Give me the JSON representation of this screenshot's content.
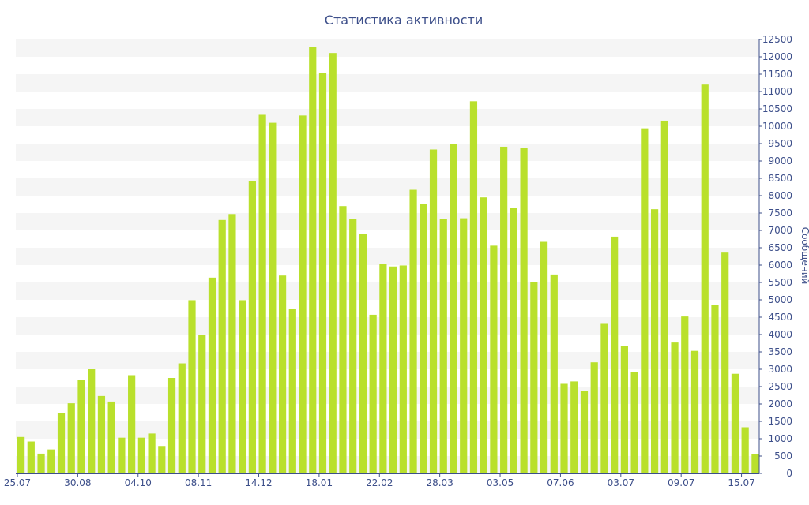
{
  "colors": {
    "bar": "#b9e02c",
    "text": "#3d4f8a",
    "band": "#f5f5f5",
    "axis": "#3d4f8a"
  },
  "chart_data": {
    "type": "bar",
    "title": "Статистика активности",
    "xlabel": "",
    "ylabel": "Сообщений",
    "ylim": [
      0,
      12500
    ],
    "y_ticks": [
      0,
      500,
      1000,
      1500,
      2000,
      2500,
      3000,
      3500,
      4000,
      4500,
      5000,
      5500,
      6000,
      6500,
      7000,
      7500,
      8000,
      8500,
      9000,
      9500,
      10000,
      10500,
      11000,
      11500,
      12000,
      12500
    ],
    "y_axis_position": "right",
    "grid": "alternating horizontal bands",
    "x_tick_labels": [
      {
        "label": "25.07",
        "index": 0
      },
      {
        "label": "30.08",
        "index": 6
      },
      {
        "label": "04.10",
        "index": 12
      },
      {
        "label": "08.11",
        "index": 18
      },
      {
        "label": "14.12",
        "index": 24
      },
      {
        "label": "18.01",
        "index": 30
      },
      {
        "label": "22.02",
        "index": 36
      },
      {
        "label": "28.03",
        "index": 42
      },
      {
        "label": "03.05",
        "index": 48
      },
      {
        "label": "07.06",
        "index": 54
      },
      {
        "label": "03.07",
        "index": 60
      },
      {
        "label": "09.07",
        "index": 66
      },
      {
        "label": "15.07",
        "index": 72
      }
    ],
    "values": [
      1050,
      920,
      570,
      690,
      1730,
      2020,
      2690,
      3000,
      2230,
      2070,
      1030,
      2830,
      1030,
      1150,
      790,
      2750,
      3170,
      4990,
      3980,
      5640,
      7300,
      7470,
      4990,
      8430,
      10330,
      10100,
      5700,
      4730,
      10310,
      12280,
      11540,
      12110,
      7700,
      7340,
      6900,
      4570,
      6030,
      5960,
      5990,
      8170,
      7760,
      9330,
      7330,
      9480,
      7350,
      10720,
      7950,
      6560,
      9410,
      7650,
      9380,
      5500,
      6670,
      5730,
      2580,
      2650,
      2370,
      3200,
      4330,
      6820,
      3660,
      2910,
      9940,
      7610,
      10160,
      3770,
      4520,
      3530,
      11200,
      4850,
      6360,
      2870,
      1330,
      560
    ]
  }
}
